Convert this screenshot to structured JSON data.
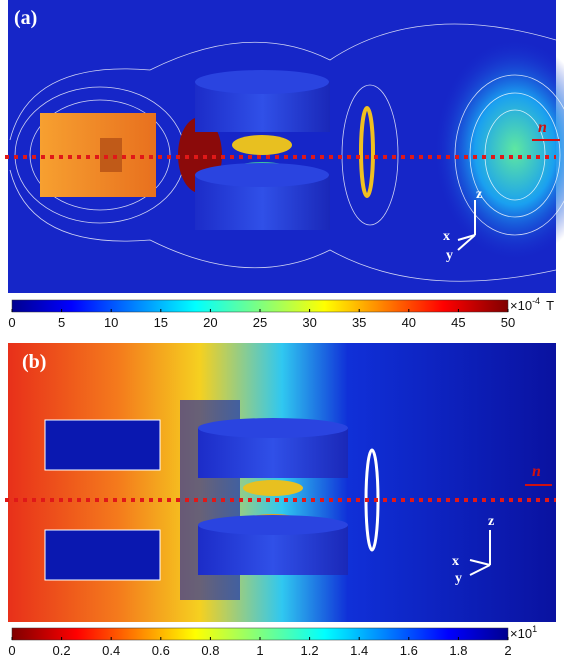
{
  "panels": [
    {
      "label": "(a)",
      "direction_label": "n",
      "axes": {
        "x": "x",
        "y": "y",
        "z": "z"
      },
      "colorbar": {
        "ticks": [
          0,
          5,
          10,
          15,
          20,
          25,
          30,
          35,
          40,
          45,
          50
        ],
        "multiplier": "×10",
        "exponent": "-4",
        "unit": "T"
      }
    },
    {
      "label": "(b)",
      "direction_label": "n",
      "axes": {
        "x": "x",
        "y": "y",
        "z": "z"
      },
      "colorbar": {
        "ticks": [
          0,
          0.2,
          0.4,
          0.6,
          0.8,
          1,
          1.2,
          1.4,
          1.6,
          1.8,
          2
        ],
        "multiplier": "×10",
        "exponent": "1"
      }
    }
  ]
}
